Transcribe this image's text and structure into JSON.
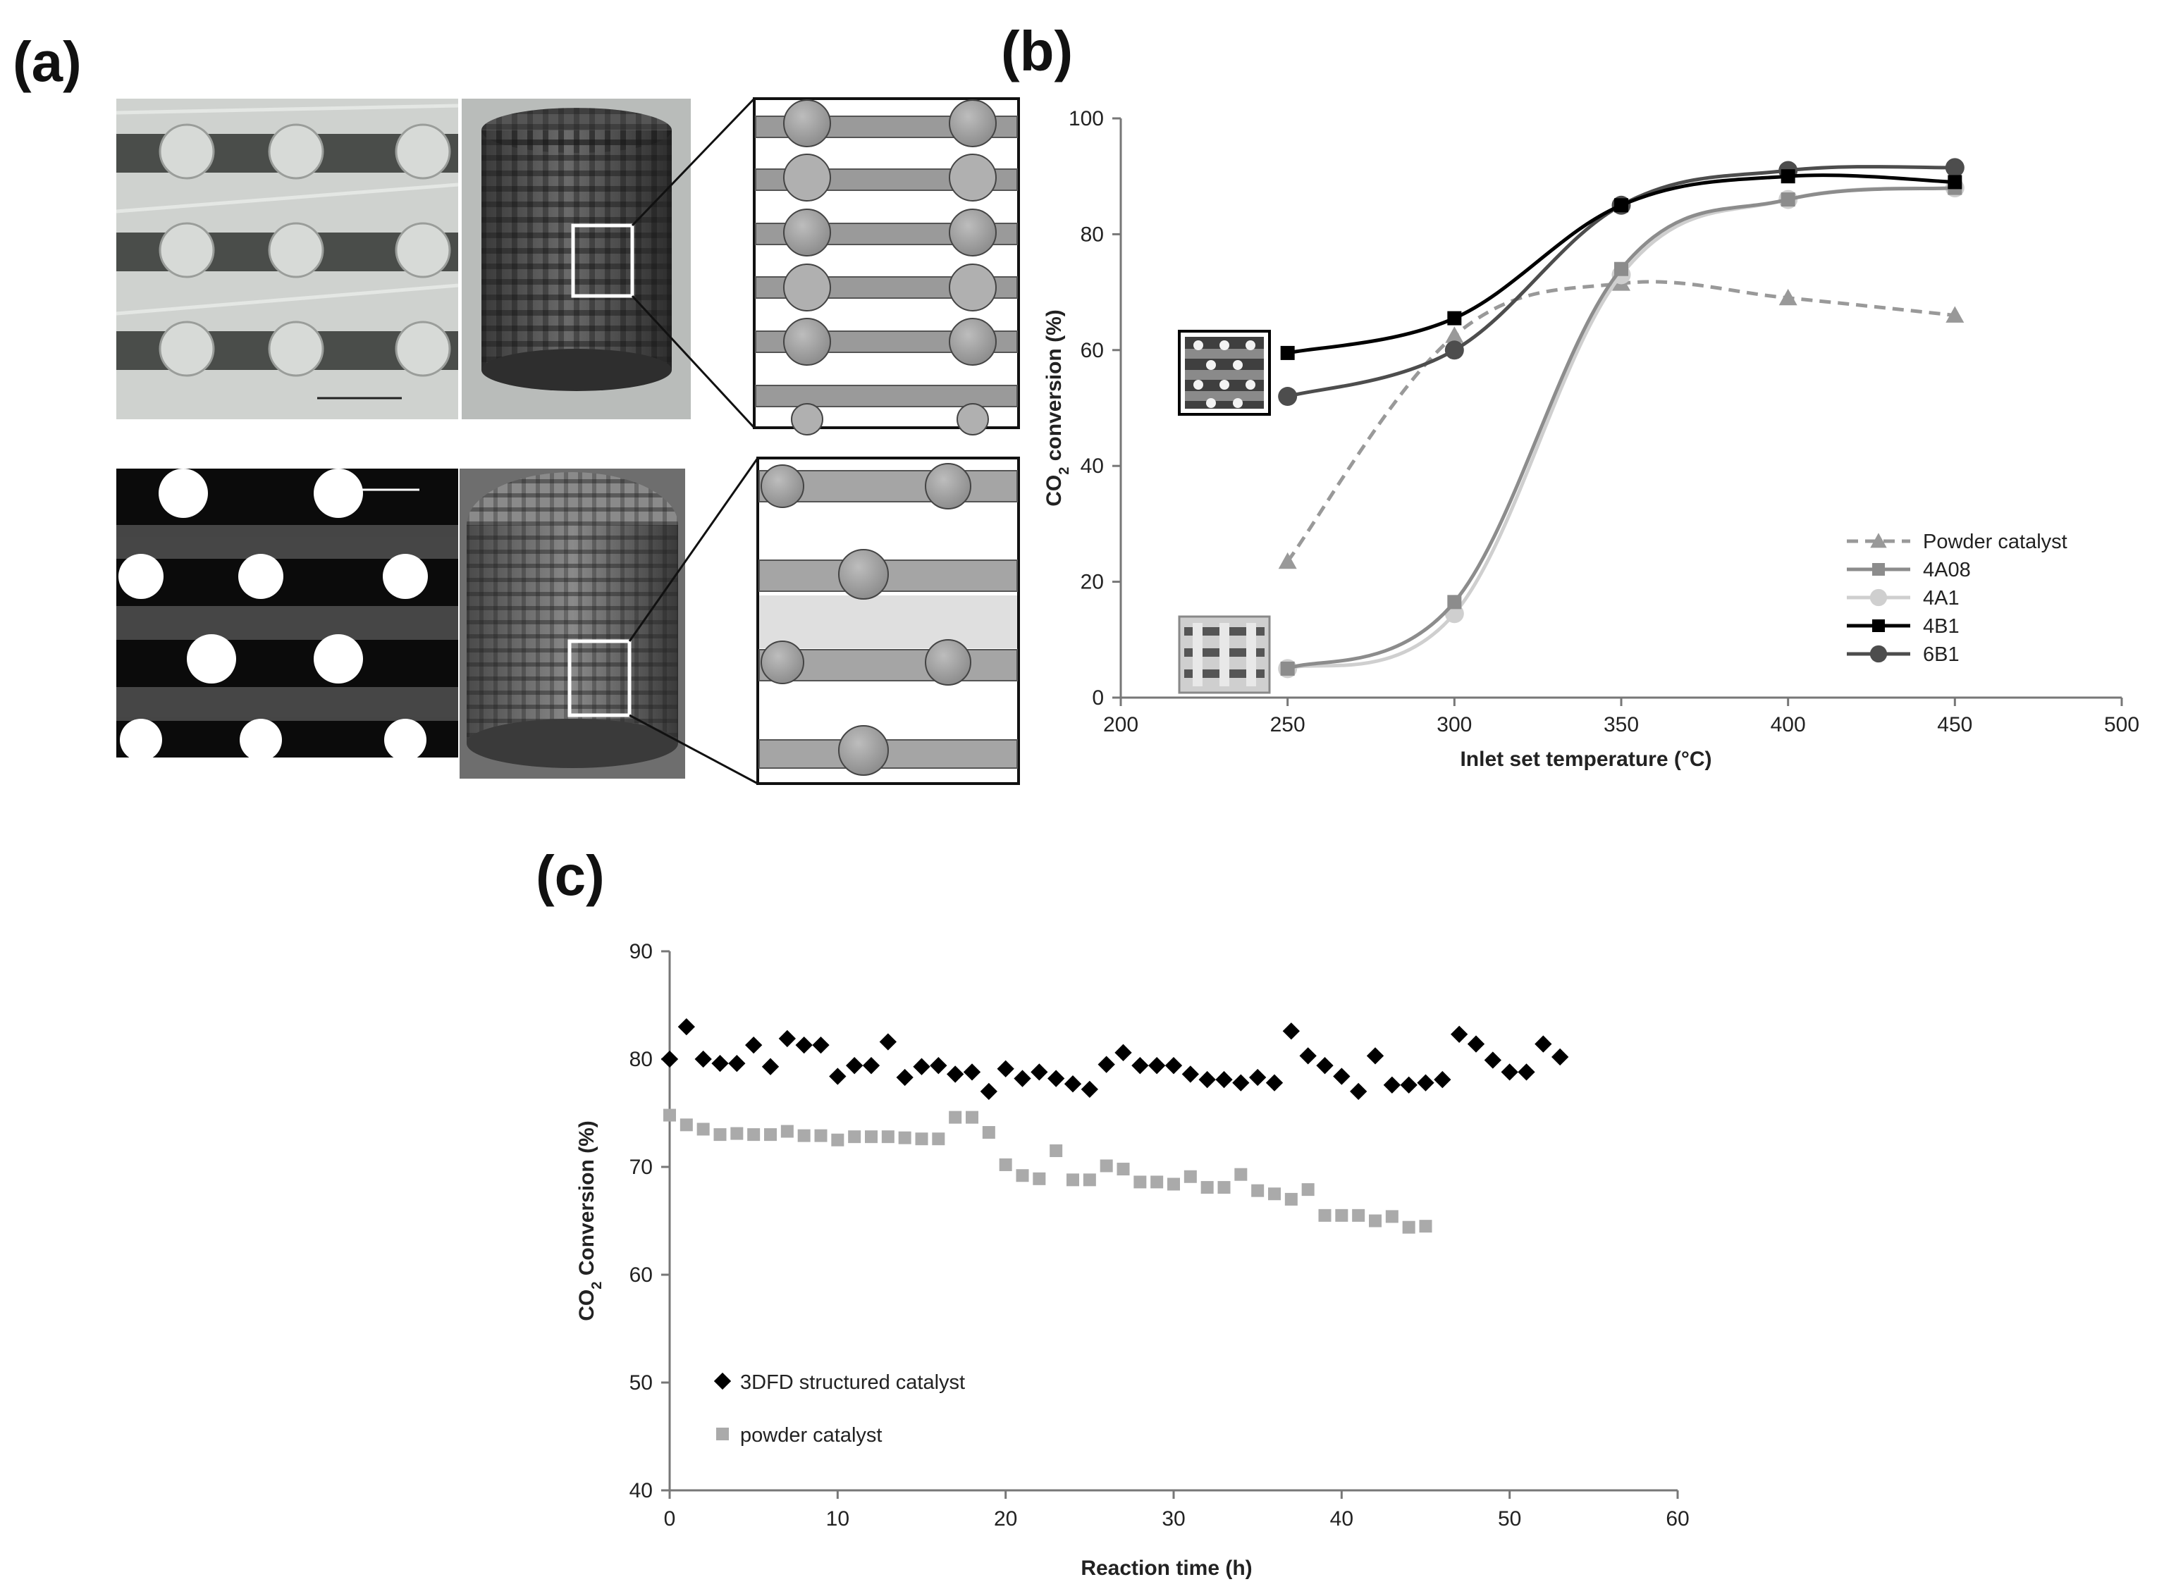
{
  "panels": {
    "a": "(a)",
    "b": "(b)",
    "c": "(c)"
  },
  "colors": {
    "powder_b": "#999999",
    "4A08": "#8c8c8c",
    "4A1": "#cfcfcf",
    "4B1": "#000000",
    "6B1": "#4d4d4d",
    "structured_c": "#000000",
    "powder_c": "#aaaaaa"
  },
  "chart_data": [
    {
      "type": "line",
      "panel": "(b)",
      "xlabel": "Inlet set temperature (°C)",
      "ylabel_parts": [
        "CO",
        "2",
        " conversion (%)"
      ],
      "xlim": [
        200,
        500
      ],
      "ylim": [
        0,
        100
      ],
      "x_ticks": [
        "200",
        "250",
        "300",
        "350",
        "400",
        "450",
        "500"
      ],
      "y_ticks": [
        "0",
        "20",
        "40",
        "60",
        "80",
        "100"
      ],
      "x": [
        250,
        300,
        350,
        400,
        450
      ],
      "series": [
        {
          "name": "Powder catalyst",
          "marker": "triangle",
          "dashed": true,
          "values": [
            23.5,
            62.5,
            71.5,
            69,
            66
          ]
        },
        {
          "name": "4A08",
          "marker": "square",
          "dashed": false,
          "values": [
            5,
            16.5,
            74,
            86,
            88
          ]
        },
        {
          "name": "4A1",
          "marker": "circle",
          "dashed": false,
          "values": [
            5,
            14.5,
            73,
            86,
            88
          ]
        },
        {
          "name": "4B1",
          "marker": "square",
          "dashed": false,
          "values": [
            59.5,
            65.5,
            85,
            90,
            89
          ]
        },
        {
          "name": "6B1",
          "marker": "circle",
          "dashed": false,
          "values": [
            52,
            60,
            85,
            91,
            91.5
          ]
        }
      ],
      "legend": "bottom-right",
      "grid": false
    },
    {
      "type": "scatter",
      "panel": "(c)",
      "xlabel": "Reaction time (h)",
      "ylabel_parts": [
        "CO",
        "2",
        " Conversion (%)"
      ],
      "xlim": [
        0,
        60
      ],
      "ylim": [
        40,
        90
      ],
      "x_ticks": [
        "0",
        "10",
        "20",
        "30",
        "40",
        "50",
        "60"
      ],
      "y_ticks": [
        "40",
        "50",
        "60",
        "70",
        "80",
        "90"
      ],
      "series": [
        {
          "name": "3DFD structured catalyst",
          "marker": "diamond",
          "x": [
            0,
            1,
            2,
            3,
            4,
            5,
            6,
            7,
            8,
            9,
            10,
            11,
            12,
            13,
            14,
            15,
            16,
            17,
            18,
            19,
            20,
            21,
            22,
            23,
            24,
            25,
            26,
            27,
            28,
            29,
            30,
            31,
            32,
            33,
            34,
            35,
            36,
            37,
            38,
            39,
            40,
            41,
            42,
            43,
            44,
            45,
            46,
            47,
            48,
            49,
            50,
            51,
            52,
            53
          ],
          "y": [
            80,
            83,
            80,
            79.6,
            79.6,
            81.3,
            79.3,
            81.9,
            81.3,
            81.3,
            78.4,
            79.4,
            79.4,
            81.6,
            78.3,
            79.3,
            79.4,
            78.6,
            78.8,
            77,
            79.1,
            78.2,
            78.8,
            78.2,
            77.7,
            77.2,
            79.5,
            80.6,
            79.4,
            79.4,
            79.4,
            78.6,
            78.1,
            78.1,
            77.8,
            78.3,
            77.8,
            82.6,
            80.3,
            79.4,
            78.4,
            77,
            80.3,
            77.6,
            77.6,
            77.8,
            78.1,
            82.3,
            81.4,
            79.9,
            78.8,
            78.8,
            81.4,
            80.2
          ]
        },
        {
          "name": "powder catalyst",
          "marker": "square",
          "x": [
            0,
            1,
            2,
            3,
            4,
            5,
            6,
            7,
            8,
            9,
            10,
            11,
            12,
            13,
            14,
            15,
            16,
            17,
            18,
            19,
            20,
            21,
            22,
            23,
            24,
            25,
            26,
            27,
            28,
            29,
            30,
            31,
            32,
            33,
            34,
            35,
            36,
            37,
            38,
            39,
            40,
            41,
            42,
            43,
            44,
            45
          ],
          "y": [
            74.8,
            73.9,
            73.5,
            73,
            73.1,
            73,
            73,
            73.3,
            72.9,
            72.9,
            72.5,
            72.8,
            72.8,
            72.8,
            72.7,
            72.6,
            72.6,
            74.6,
            74.6,
            73.2,
            70.2,
            69.2,
            68.9,
            71.5,
            68.8,
            68.8,
            70.1,
            69.8,
            68.6,
            68.6,
            68.4,
            69.1,
            68.1,
            68.1,
            69.3,
            67.8,
            67.5,
            67,
            67.9,
            65.5,
            65.5,
            65.5,
            65,
            65.4,
            64.4,
            64.5
          ]
        }
      ],
      "legend": "bottom-left",
      "grid": false
    }
  ]
}
